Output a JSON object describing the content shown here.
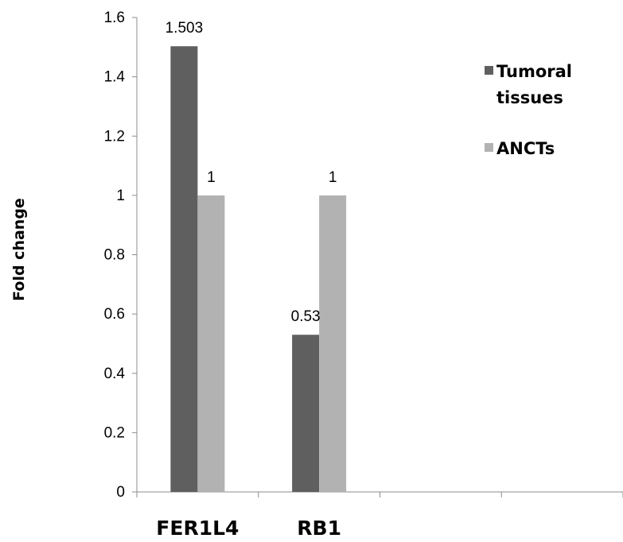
{
  "chart_data": {
    "type": "bar",
    "categories": [
      "FER1L4",
      "RB1",
      "",
      ""
    ],
    "series": [
      {
        "name": "Tumoral tissues",
        "values": [
          1.503,
          0.53,
          null,
          null
        ],
        "color": "#5f5f5f",
        "data_labels": [
          "1.503",
          "0.53",
          "",
          ""
        ]
      },
      {
        "name": "ANCTs",
        "values": [
          1,
          1,
          null,
          null
        ],
        "color": "#b2b2b2",
        "data_labels": [
          "1",
          "1",
          "",
          ""
        ]
      }
    ],
    "title": "",
    "xlabel": "",
    "ylabel": "Fold change",
    "ylim": [
      0,
      1.6
    ],
    "yticks": [
      "0",
      "0.2",
      "0.4",
      "0.6",
      "0.8",
      "1",
      "1.2",
      "1.4",
      "1.6"
    ],
    "grid": false,
    "legend_position": "top-right",
    "legend": [
      {
        "lines": [
          "Tumoral",
          "tissues"
        ],
        "color": "#5f5f5f"
      },
      {
        "lines": [
          "ANCTs"
        ],
        "color": "#b2b2b2"
      }
    ]
  }
}
